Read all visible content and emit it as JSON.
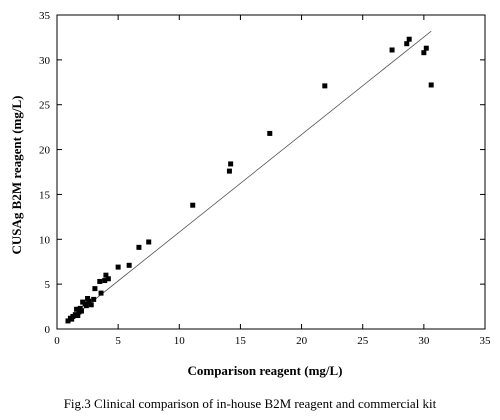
{
  "figure": {
    "caption": "Fig.3 Clinical comparison of in-house B2M reagent and commercial kit"
  },
  "chart_data": {
    "type": "scatter",
    "title": "",
    "xlabel": "Comparison reagent (mg/L)",
    "ylabel": "CUSAg B2M reagent (mg/L)",
    "xlim": [
      0,
      35
    ],
    "ylim": [
      0,
      35
    ],
    "xticks": [
      0,
      5,
      10,
      15,
      20,
      25,
      30,
      35
    ],
    "yticks": [
      0,
      5,
      10,
      15,
      20,
      25,
      30,
      35
    ],
    "grid": false,
    "legend": "none",
    "marker": "square",
    "colors": {
      "points": "#000000",
      "fit_line": "#555555",
      "axis": "#000000"
    },
    "fit_line": {
      "x": [
        0.9,
        30.6
      ],
      "y": [
        0.9,
        33.2
      ]
    },
    "points": [
      {
        "x": 0.9,
        "y": 0.9
      },
      {
        "x": 1.1,
        "y": 1.2
      },
      {
        "x": 1.2,
        "y": 1.1
      },
      {
        "x": 1.3,
        "y": 1.4
      },
      {
        "x": 1.5,
        "y": 1.6
      },
      {
        "x": 1.6,
        "y": 2.2
      },
      {
        "x": 1.7,
        "y": 1.5
      },
      {
        "x": 1.8,
        "y": 1.9
      },
      {
        "x": 1.9,
        "y": 2.3
      },
      {
        "x": 2.0,
        "y": 2.0
      },
      {
        "x": 2.1,
        "y": 3.0
      },
      {
        "x": 2.3,
        "y": 2.8
      },
      {
        "x": 2.4,
        "y": 2.6
      },
      {
        "x": 2.5,
        "y": 3.4
      },
      {
        "x": 2.6,
        "y": 3.1
      },
      {
        "x": 2.8,
        "y": 2.7
      },
      {
        "x": 3.0,
        "y": 3.3
      },
      {
        "x": 3.1,
        "y": 4.5
      },
      {
        "x": 3.5,
        "y": 5.3
      },
      {
        "x": 3.6,
        "y": 4.0
      },
      {
        "x": 3.9,
        "y": 5.4
      },
      {
        "x": 4.0,
        "y": 6.0
      },
      {
        "x": 4.2,
        "y": 5.6
      },
      {
        "x": 5.0,
        "y": 6.9
      },
      {
        "x": 5.9,
        "y": 7.1
      },
      {
        "x": 6.7,
        "y": 9.1
      },
      {
        "x": 7.5,
        "y": 9.7
      },
      {
        "x": 11.1,
        "y": 13.8
      },
      {
        "x": 14.1,
        "y": 17.6
      },
      {
        "x": 14.2,
        "y": 18.4
      },
      {
        "x": 17.4,
        "y": 21.8
      },
      {
        "x": 21.9,
        "y": 27.1
      },
      {
        "x": 27.4,
        "y": 31.1
      },
      {
        "x": 28.6,
        "y": 31.8
      },
      {
        "x": 28.8,
        "y": 32.3
      },
      {
        "x": 30.0,
        "y": 30.8
      },
      {
        "x": 30.2,
        "y": 31.3
      },
      {
        "x": 30.6,
        "y": 27.2
      }
    ]
  }
}
